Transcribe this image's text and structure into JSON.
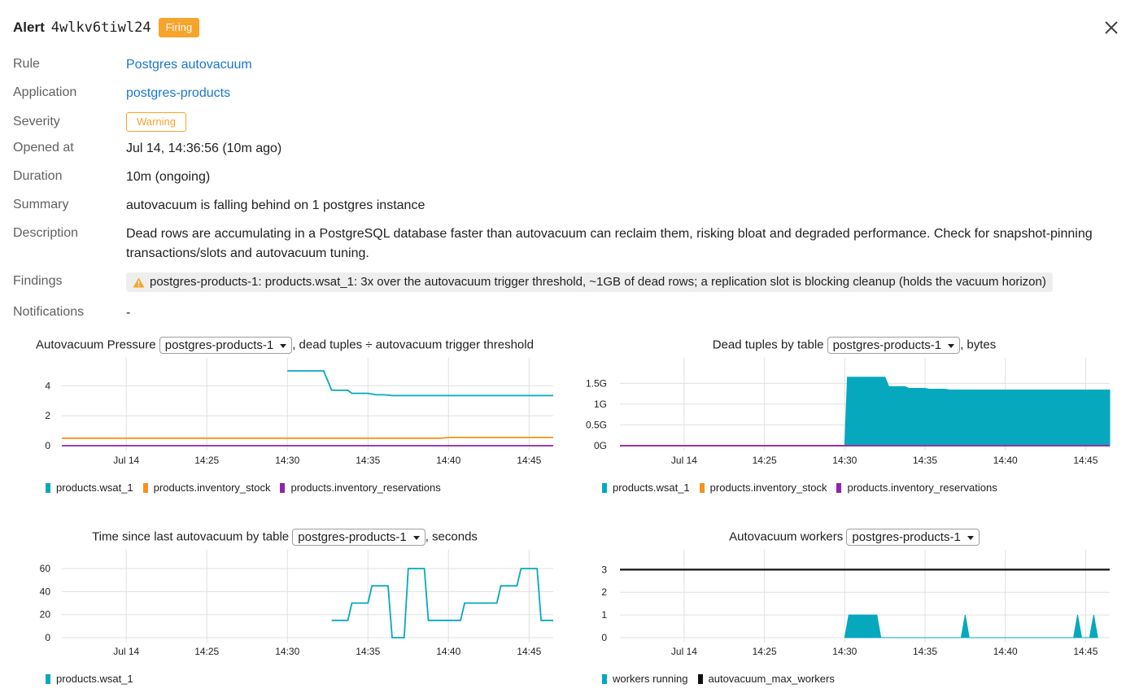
{
  "header": {
    "title": "Alert",
    "alert_id": "4wlkv6tiwl24",
    "status": "Firing"
  },
  "details": {
    "rule": {
      "label": "Rule",
      "value": "Postgres autovacuum"
    },
    "application": {
      "label": "Application",
      "value": "postgres-products"
    },
    "severity": {
      "label": "Severity",
      "value": "Warning"
    },
    "opened_at": {
      "label": "Opened at",
      "value": "Jul 14, 14:36:56 (10m ago)"
    },
    "duration": {
      "label": "Duration",
      "value": "10m (ongoing)"
    },
    "summary": {
      "label": "Summary",
      "value": "autovacuum is falling behind on 1 postgres instance"
    },
    "description": {
      "label": "Description",
      "value": "Dead rows are accumulating in a PostgreSQL database faster than autovacuum can reclaim them, risking bloat and degraded performance. Check for snapshot-pinning transactions/slots and autovacuum tuning."
    },
    "findings": {
      "label": "Findings",
      "value": "postgres-products-1: products.wsat_1: 3x over the autovacuum trigger threshold, ~1GB of dead rows; a replication slot is blocking cleanup (holds the vacuum horizon)"
    },
    "notifications": {
      "label": "Notifications",
      "value": "-"
    }
  },
  "colors": {
    "teal": "#06a8be",
    "orange": "#f6921e",
    "purple": "#8e24aa",
    "black": "#111111",
    "link": "#1976d2",
    "firing": "#f6a42c"
  },
  "charts": {
    "pressure": {
      "title_pre": "Autovacuum Pressure",
      "instance": "postgres-products-1",
      "title_post": ", dead tuples ÷ autovacuum trigger threshold"
    },
    "dead": {
      "title_pre": "Dead tuples by table",
      "instance": "postgres-products-1",
      "title_post": ", bytes"
    },
    "since": {
      "title_pre": "Time since last autovacuum by table",
      "instance": "postgres-products-1",
      "title_post": ", seconds"
    },
    "workers": {
      "title_pre": "Autovacuum workers",
      "instance": "postgres-products-1",
      "title_post": ""
    }
  },
  "chart_data": [
    {
      "type": "line",
      "x_ticks": [
        "Jul 14",
        "14:25",
        "14:30",
        "14:35",
        "14:40",
        "14:45"
      ],
      "y_ticks": [
        "0",
        "2",
        "4"
      ],
      "xlim": [
        "14:16",
        "14:46:30"
      ],
      "ylim": [
        0,
        5
      ],
      "grid": true,
      "legend_placement": "bottom-left",
      "series": [
        {
          "name": "products.wsat_1",
          "color": "teal",
          "points": [
            [
              "14:30",
              5.0
            ],
            [
              "14:32:15",
              5.0
            ],
            [
              "14:32:45",
              3.7
            ],
            [
              "14:33:45",
              3.7
            ],
            [
              "14:34",
              3.5
            ],
            [
              "14:35",
              3.5
            ],
            [
              "14:35:30",
              3.4
            ],
            [
              "14:36",
              3.4
            ],
            [
              "14:36:30",
              3.35
            ],
            [
              "14:46:30",
              3.35
            ]
          ]
        },
        {
          "name": "products.inventory_stock",
          "color": "orange",
          "points": [
            [
              "14:16",
              0.5
            ],
            [
              "14:39.5",
              0.5
            ],
            [
              "14:40",
              0.55
            ],
            [
              "14:46:30",
              0.55
            ]
          ]
        },
        {
          "name": "products.inventory_reservations",
          "color": "purple",
          "points": [
            [
              "14:16",
              0.0
            ],
            [
              "14:46:30",
              0.0
            ]
          ]
        }
      ]
    },
    {
      "type": "area",
      "x_ticks": [
        "Jul 14",
        "14:25",
        "14:30",
        "14:35",
        "14:40",
        "14:45"
      ],
      "y_ticks": [
        "0G",
        "0.5G",
        "1G",
        "1.5G"
      ],
      "xlim": [
        "14:16",
        "14:46:30"
      ],
      "ylim": [
        0,
        1.8
      ],
      "grid": true,
      "legend_placement": "bottom-left",
      "series": [
        {
          "name": "products.wsat_1",
          "color": "teal",
          "points": [
            [
              "14:30",
              0.0
            ],
            [
              "14:30:10",
              1.65
            ],
            [
              "14:32:30",
              1.65
            ],
            [
              "14:32:45",
              1.42
            ],
            [
              "14:33:45",
              1.42
            ],
            [
              "14:34",
              1.38
            ],
            [
              "14:35",
              1.38
            ],
            [
              "14:35:15",
              1.36
            ],
            [
              "14:36:15",
              1.36
            ],
            [
              "14:36:30",
              1.34
            ],
            [
              "14:46:30",
              1.34
            ]
          ]
        },
        {
          "name": "products.inventory_stock",
          "color": "orange",
          "points": [
            [
              "14:16",
              0.0
            ],
            [
              "14:46:30",
              0.0
            ]
          ]
        },
        {
          "name": "products.inventory_reservations",
          "color": "purple",
          "points": [
            [
              "14:16",
              0.0
            ],
            [
              "14:46:30",
              0.0
            ]
          ]
        }
      ]
    },
    {
      "type": "line",
      "x_ticks": [
        "Jul 14",
        "14:25",
        "14:30",
        "14:35",
        "14:40",
        "14:45"
      ],
      "y_ticks": [
        "0",
        "20",
        "40",
        "60"
      ],
      "xlim": [
        "14:16",
        "14:46:30"
      ],
      "ylim": [
        0,
        65
      ],
      "grid": true,
      "legend_placement": "bottom-left",
      "series": [
        {
          "name": "products.wsat_1",
          "color": "teal",
          "points": [
            [
              "14:32:45",
              15
            ],
            [
              "14:33:45",
              15
            ],
            [
              "14:34",
              30
            ],
            [
              "14:35",
              30
            ],
            [
              "14:35:15",
              45
            ],
            [
              "14:36:15",
              45
            ],
            [
              "14:36:30",
              0
            ],
            [
              "14:37:15",
              0
            ],
            [
              "14:37:30",
              60
            ],
            [
              "14:38:30",
              60
            ],
            [
              "14:38:45",
              15
            ],
            [
              "14:40:45",
              15
            ],
            [
              "14:41",
              30
            ],
            [
              "14:43",
              30
            ],
            [
              "14:43:15",
              45
            ],
            [
              "14:44:15",
              45
            ],
            [
              "14:44:30",
              60
            ],
            [
              "14:45:30",
              60
            ],
            [
              "14:45:45",
              15
            ],
            [
              "14:46:30",
              15
            ]
          ]
        }
      ]
    },
    {
      "type": "area",
      "x_ticks": [
        "Jul 14",
        "14:25",
        "14:30",
        "14:35",
        "14:40",
        "14:45"
      ],
      "y_ticks": [
        "0",
        "1",
        "2",
        "3"
      ],
      "xlim": [
        "14:16",
        "14:46:30"
      ],
      "ylim": [
        0,
        3.3
      ],
      "grid": true,
      "legend_placement": "bottom-left",
      "series": [
        {
          "name": "workers running",
          "color": "teal",
          "points": [
            [
              "14:30",
              0
            ],
            [
              "14:30:15",
              1
            ],
            [
              "14:32",
              1
            ],
            [
              "14:32:15",
              0
            ],
            [
              "14:37:15",
              0
            ],
            [
              "14:37:30",
              1
            ],
            [
              "14:37:45",
              0
            ],
            [
              "14:44:15",
              0
            ],
            [
              "14:44:30",
              1
            ],
            [
              "14:44:45",
              0
            ],
            [
              "14:45:15",
              0
            ],
            [
              "14:45:30",
              1
            ],
            [
              "14:45:45",
              0
            ]
          ]
        },
        {
          "name": "autovacuum_max_workers",
          "color": "black",
          "points": [
            [
              "14:16",
              3
            ],
            [
              "14:46:30",
              3
            ]
          ]
        }
      ]
    }
  ]
}
